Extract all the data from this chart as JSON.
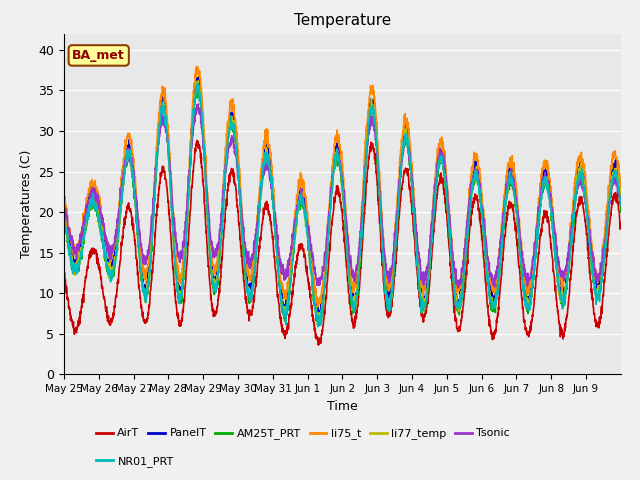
{
  "title": "Temperature",
  "ylabel": "Temperatures (C)",
  "xlabel": "Time",
  "ylim": [
    0,
    42
  ],
  "yticks": [
    0,
    5,
    10,
    15,
    20,
    25,
    30,
    35,
    40
  ],
  "annotation": "BA_met",
  "annotation_fgcolor": "#8B0000",
  "annotation_bgcolor": "#FFFF99",
  "annotation_edgecolor": "#8B4000",
  "plot_bgcolor": "#E8E8E8",
  "fig_bgcolor": "#F0F0F0",
  "series_order": [
    "AirT",
    "PanelT",
    "AM25T_PRT",
    "li75_t",
    "li77_temp",
    "Tsonic",
    "NR01_PRT"
  ],
  "series_colors": {
    "AirT": "#CC0000",
    "PanelT": "#0000CC",
    "AM25T_PRT": "#00AA00",
    "li75_t": "#FF8800",
    "li77_temp": "#BBBB00",
    "Tsonic": "#9933CC",
    "NR01_PRT": "#00BBBB"
  },
  "lw": 1.2,
  "n_days": 16,
  "ppd": 144,
  "tick_labels": [
    "May 25",
    "May 26",
    "May 27",
    "May 28",
    "May 29",
    "May 30",
    "May 31",
    "Jun 1",
    "Jun 2",
    "Jun 3",
    "Jun 4",
    "Jun 5",
    "Jun 6",
    "Jun 7",
    "Jun 8",
    "Jun 9"
  ],
  "legend_ncol_row1": 6,
  "legend_ncol_row2": 1
}
